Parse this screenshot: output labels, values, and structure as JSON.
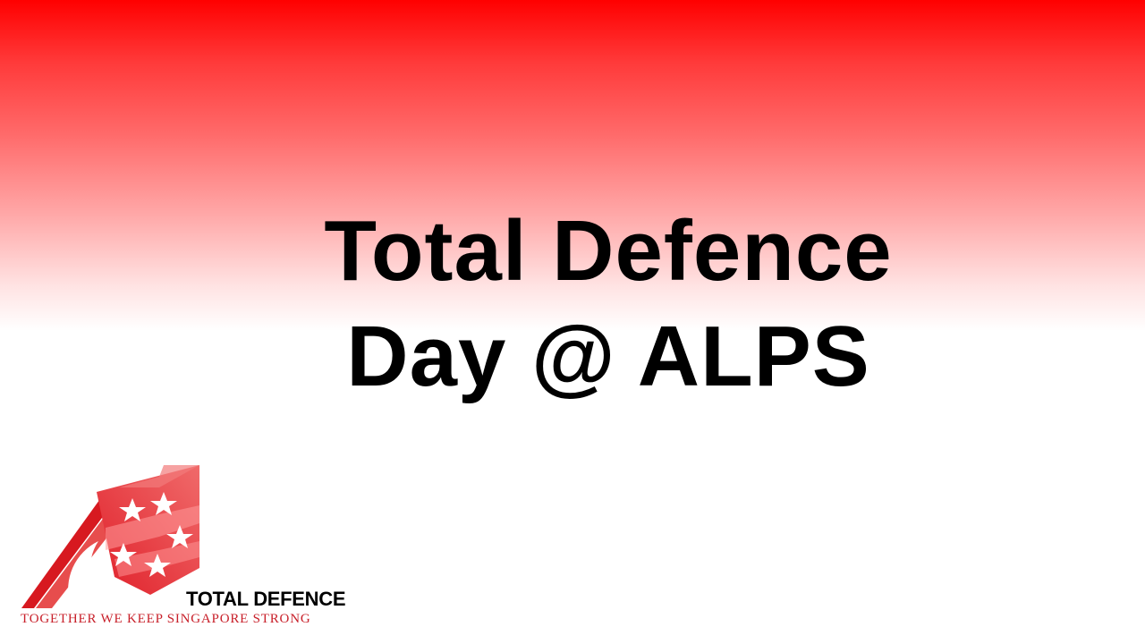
{
  "slide": {
    "title_line1": "Total Defence",
    "title_line2": "Day @ ALPS"
  },
  "logo": {
    "name": "TOTAL DEFENCE",
    "tagline": "TOGETHER WE KEEP SINGAPORE STRONG"
  },
  "colors": {
    "gradient_top": "#ff0000",
    "background": "#ffffff",
    "title_text": "#000000",
    "logo_red": "#e0202a",
    "tagline_red": "#c8202a"
  },
  "icons": {
    "logo_emblem": "total-defence-emblem-icon"
  }
}
